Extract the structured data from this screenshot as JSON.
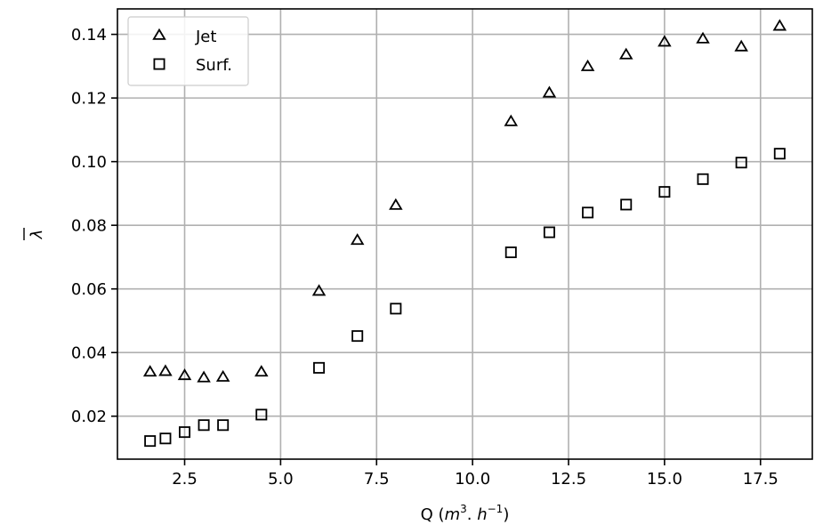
{
  "chart_data": {
    "type": "scatter",
    "title": "",
    "xlabel": "Q ($m^3.h^{-1}$)",
    "xlabel_parts": {
      "prefix": "Q (",
      "var1": "m",
      "sup1": "3",
      "mid": ". ",
      "var2": "h",
      "sup2": "−1",
      "suffix": ")"
    },
    "ylabel": "λ̄",
    "ylabel_symbol": "λ",
    "xlim": [
      0.75,
      18.85
    ],
    "ylim": [
      0.0065,
      0.148
    ],
    "xticks": [
      2.5,
      5.0,
      7.5,
      10.0,
      12.5,
      15.0,
      17.5
    ],
    "xtick_labels": [
      "2.5",
      "5.0",
      "7.5",
      "10.0",
      "12.5",
      "15.0",
      "17.5"
    ],
    "yticks": [
      0.02,
      0.04,
      0.06,
      0.08,
      0.1,
      0.12,
      0.14
    ],
    "ytick_labels": [
      "0.02",
      "0.04",
      "0.06",
      "0.08",
      "0.10",
      "0.12",
      "0.14"
    ],
    "grid": true,
    "legend_position": "top-left",
    "series": [
      {
        "name": "Jet",
        "marker": "triangle",
        "x": [
          1.6,
          2.0,
          2.5,
          3.0,
          3.5,
          4.5,
          6.0,
          7.0,
          8.0,
          11.0,
          12.0,
          13.0,
          14.0,
          15.0,
          16.0,
          17.0,
          18.0
        ],
        "y": [
          0.0338,
          0.034,
          0.0327,
          0.032,
          0.0322,
          0.0338,
          0.0592,
          0.0752,
          0.0862,
          0.1125,
          0.1215,
          0.1298,
          0.1335,
          0.1375,
          0.1385,
          0.136,
          0.1425
        ]
      },
      {
        "name": "Surf.",
        "marker": "square",
        "x": [
          1.6,
          2.0,
          2.5,
          3.0,
          3.5,
          4.5,
          6.0,
          7.0,
          8.0,
          11.0,
          12.0,
          13.0,
          14.0,
          15.0,
          16.0,
          17.0,
          18.0
        ],
        "y": [
          0.0122,
          0.013,
          0.015,
          0.0172,
          0.0172,
          0.0205,
          0.0352,
          0.0452,
          0.0538,
          0.0715,
          0.0778,
          0.084,
          0.0865,
          0.0905,
          0.0945,
          0.0997,
          0.1025
        ]
      }
    ]
  }
}
